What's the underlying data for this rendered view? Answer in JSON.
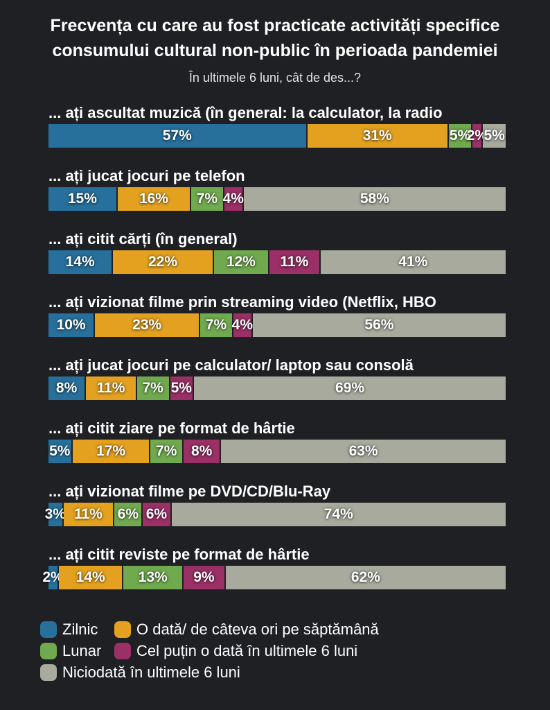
{
  "title": "Frecvența cu care au fost practicate activități specifice consumului cultural non-public în perioada pandemiei",
  "subtitle": "În ultimele 6 luni, cât de des...?",
  "chart_data": {
    "type": "bar",
    "orientation": "horizontal",
    "stacked": true,
    "unit": "%",
    "xlim": [
      0,
      100
    ],
    "grid": false,
    "legend_position": "bottom-left",
    "background_color": "#1f2023",
    "text_color": "#ffffff",
    "series": [
      "Zilnic",
      "O dată/ de câteva ori pe săptămână",
      "Lunar",
      "Cel puțin o dată în ultimele 6 luni",
      "Niciodată în ultimele 6 luni"
    ],
    "series_colors": [
      "#27709c",
      "#e3a11f",
      "#70a94e",
      "#9a3066",
      "#a7aa9c"
    ],
    "rows": [
      {
        "label": "... ați ascultat muzică (în general: la calculator, la radio",
        "values": [
          57,
          31,
          5,
          2,
          5
        ]
      },
      {
        "label": "... ați jucat jocuri pe telefon",
        "values": [
          15,
          16,
          7,
          4,
          58
        ]
      },
      {
        "label": "... ați citit cărți (în general)",
        "values": [
          14,
          22,
          12,
          11,
          41
        ]
      },
      {
        "label": "... ați vizionat filme prin streaming video (Netflix, HBO",
        "values": [
          10,
          23,
          7,
          4,
          56
        ]
      },
      {
        "label": "... ați jucat jocuri pe calculator/ laptop sau consolă",
        "values": [
          8,
          11,
          7,
          5,
          69
        ]
      },
      {
        "label": "... ați citit ziare pe format de hârtie",
        "values": [
          5,
          17,
          7,
          8,
          63
        ]
      },
      {
        "label": "... ați vizionat filme pe DVD/CD/Blu-Ray",
        "values": [
          3,
          11,
          6,
          6,
          74
        ]
      },
      {
        "label": "... ați citit reviste pe format de hârtie",
        "values": [
          2,
          14,
          13,
          9,
          62
        ]
      }
    ]
  },
  "legend": {
    "items": [
      {
        "label": "Zilnic",
        "color": "#27709c"
      },
      {
        "label": "O dată/ de câteva ori pe săptămână",
        "color": "#e3a11f"
      },
      {
        "label": "Lunar",
        "color": "#70a94e"
      },
      {
        "label": "Cel puțin o dată în ultimele 6 luni",
        "color": "#9a3066"
      },
      {
        "label": "Niciodată în ultimele 6 luni",
        "color": "#a7aa9c"
      }
    ],
    "layout_rows": [
      [
        0,
        1
      ],
      [
        2,
        3
      ],
      [
        4
      ]
    ]
  }
}
